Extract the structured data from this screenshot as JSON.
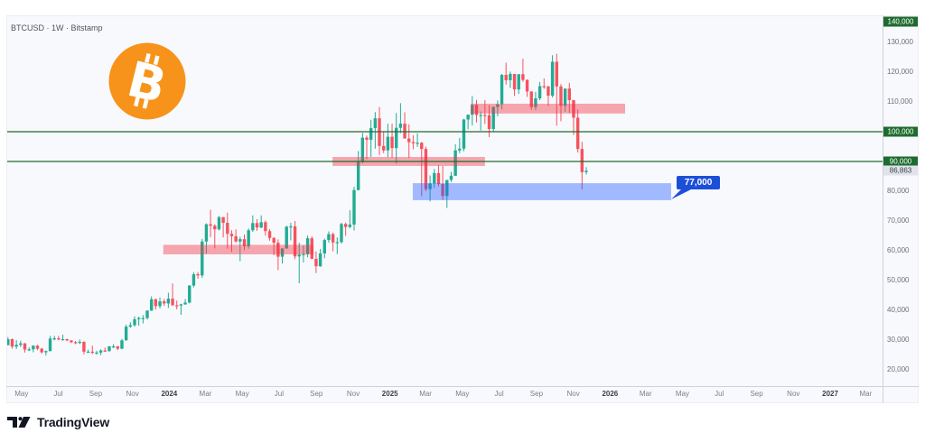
{
  "header": {
    "title": "BTCUSD · 1W · Bitstamp"
  },
  "logo": {
    "glyph": "B"
  },
  "brand": {
    "name": "TradingView"
  },
  "annotation": {
    "text": "77,000",
    "anchor_index": 157.1,
    "anchor_price": 77000
  },
  "colors": {
    "up": "#22ab94",
    "down": "#f7525f",
    "level_line": "#1e6b2e",
    "supply_zone": "rgba(242,54,69,0.43)",
    "demand_zone": "rgba(41,98,255,0.42)",
    "callout": "#1c4fd8",
    "bitcoin_orange": "#f7931a"
  },
  "price_axis": {
    "labels": [
      {
        "text": "130,000",
        "price": 130000
      },
      {
        "text": "120,000",
        "price": 120000
      },
      {
        "text": "110,000",
        "price": 110000
      },
      {
        "text": "80,000",
        "price": 80000
      },
      {
        "text": "70,000",
        "price": 70000
      },
      {
        "text": "60,000",
        "price": 60000
      },
      {
        "text": "50,000",
        "price": 50000
      },
      {
        "text": "40,000",
        "price": 40000
      },
      {
        "text": "30,000",
        "price": 30000
      },
      {
        "text": "20,000",
        "price": 20000
      }
    ],
    "highlight_labels": [
      {
        "text": "140,000",
        "price": 140000,
        "kind": "line"
      },
      {
        "text": "100,000",
        "price": 100000,
        "kind": "line"
      },
      {
        "text": "90,000",
        "price": 90000,
        "kind": "line"
      },
      {
        "text": "86,863",
        "price": 86863,
        "kind": "last"
      }
    ]
  },
  "time_axis": {
    "labels": [
      {
        "text": "May",
        "date": "2023-05-01",
        "year": false
      },
      {
        "text": "Jul",
        "date": "2023-07-01",
        "year": false
      },
      {
        "text": "Sep",
        "date": "2023-09-01",
        "year": false
      },
      {
        "text": "Nov",
        "date": "2023-11-01",
        "year": false
      },
      {
        "text": "2024",
        "date": "2024-01-01",
        "year": true
      },
      {
        "text": "Mar",
        "date": "2024-03-01",
        "year": false
      },
      {
        "text": "May",
        "date": "2024-05-01",
        "year": false
      },
      {
        "text": "Jul",
        "date": "2024-07-01",
        "year": false
      },
      {
        "text": "Sep",
        "date": "2024-09-01",
        "year": false
      },
      {
        "text": "Nov",
        "date": "2024-11-01",
        "year": false
      },
      {
        "text": "2025",
        "date": "2025-01-01",
        "year": true
      },
      {
        "text": "Mar",
        "date": "2025-03-01",
        "year": false
      },
      {
        "text": "May",
        "date": "2025-05-01",
        "year": false
      },
      {
        "text": "Jul",
        "date": "2025-07-01",
        "year": false
      },
      {
        "text": "Sep",
        "date": "2025-09-01",
        "year": false
      },
      {
        "text": "Nov",
        "date": "2025-11-01",
        "year": false
      },
      {
        "text": "2026",
        "date": "2026-01-01",
        "year": true
      },
      {
        "text": "Mar",
        "date": "2026-03-01",
        "year": false
      },
      {
        "text": "May",
        "date": "2026-05-01",
        "year": false
      },
      {
        "text": "Jul",
        "date": "2026-07-01",
        "year": false
      },
      {
        "text": "Sep",
        "date": "2026-09-01",
        "year": false
      },
      {
        "text": "Nov",
        "date": "2026-11-01",
        "year": false
      },
      {
        "text": "2027",
        "date": "2027-01-01",
        "year": true
      },
      {
        "text": "Mar",
        "date": "2027-03-01",
        "year": false
      }
    ]
  },
  "chart_data": {
    "type": "candlestick",
    "title": "BTCUSD · 1W · Bitstamp",
    "symbol": "BTCUSD",
    "interval": "1W",
    "exchange": "Bitstamp",
    "xlabel": "",
    "ylabel": "",
    "ylim": [
      15000,
      143000
    ],
    "grid": false,
    "legend": "none",
    "y_ticks": [
      20000,
      30000,
      40000,
      50000,
      60000,
      70000,
      80000,
      90000,
      100000,
      110000,
      120000,
      130000,
      140000
    ],
    "x_ticks": [
      "May",
      "Jul",
      "Sep",
      "Nov",
      "2024",
      "Mar",
      "May",
      "Jul",
      "Sep",
      "Nov",
      "2025",
      "Mar",
      "May",
      "Jul",
      "Sep",
      "Nov",
      "2026",
      "Mar",
      "May",
      "Jul",
      "Sep",
      "Nov",
      "2027",
      "Mar"
    ],
    "last_price": 86863,
    "start_week": "2023-04-10",
    "ohlc_unit": "thousands USD, [open, high, low, close], one candle per week",
    "candles": [
      [
        28.3,
        31.0,
        28.2,
        30.3
      ],
      [
        30.3,
        30.5,
        27.1,
        27.8
      ],
      [
        27.8,
        30.0,
        27.0,
        28.4
      ],
      [
        28.4,
        29.8,
        27.7,
        28.9
      ],
      [
        28.9,
        29.0,
        25.8,
        26.8
      ],
      [
        26.8,
        27.6,
        26.3,
        26.9
      ],
      [
        26.9,
        28.3,
        25.9,
        28.1
      ],
      [
        28.1,
        28.4,
        26.6,
        27.1
      ],
      [
        27.1,
        27.4,
        25.4,
        25.9
      ],
      [
        25.9,
        26.5,
        24.8,
        26.3
      ],
      [
        26.3,
        31.4,
        26.2,
        30.5
      ],
      [
        30.5,
        31.4,
        29.9,
        30.6
      ],
      [
        30.6,
        31.4,
        29.9,
        30.2
      ],
      [
        30.2,
        31.8,
        29.9,
        30.3
      ],
      [
        30.3,
        30.4,
        29.6,
        29.9
      ],
      [
        29.9,
        29.9,
        29.0,
        29.3
      ],
      [
        29.3,
        29.7,
        28.6,
        29.0
      ],
      [
        29.0,
        30.2,
        28.7,
        29.4
      ],
      [
        29.4,
        29.6,
        25.2,
        26.1
      ],
      [
        26.1,
        26.8,
        25.8,
        26.1
      ],
      [
        26.1,
        28.1,
        25.3,
        25.8
      ],
      [
        25.8,
        26.4,
        25.1,
        25.8
      ],
      [
        25.8,
        26.9,
        24.9,
        26.5
      ],
      [
        26.5,
        27.5,
        26.0,
        26.3
      ],
      [
        26.3,
        28.0,
        26.1,
        27.9
      ],
      [
        27.9,
        28.6,
        27.3,
        27.9
      ],
      [
        27.9,
        28.0,
        26.6,
        27.1
      ],
      [
        27.1,
        30.4,
        26.9,
        29.9
      ],
      [
        29.9,
        35.2,
        29.8,
        34.5
      ],
      [
        34.5,
        36.0,
        34.1,
        35.0
      ],
      [
        35.0,
        38.0,
        34.5,
        37.0
      ],
      [
        37.0,
        37.9,
        34.8,
        37.4
      ],
      [
        37.4,
        38.4,
        35.6,
        37.4
      ],
      [
        37.4,
        40.0,
        36.9,
        39.9
      ],
      [
        39.9,
        44.7,
        39.8,
        43.7
      ],
      [
        43.7,
        43.9,
        40.2,
        41.4
      ],
      [
        41.4,
        44.3,
        40.6,
        43.0
      ],
      [
        43.0,
        43.8,
        41.5,
        42.3
      ],
      [
        42.3,
        45.9,
        40.8,
        43.9
      ],
      [
        43.9,
        49.0,
        41.5,
        41.7
      ],
      [
        41.7,
        43.3,
        40.3,
        41.6
      ],
      [
        41.6,
        42.2,
        38.5,
        42.0
      ],
      [
        42.0,
        43.8,
        41.8,
        42.6
      ],
      [
        42.6,
        48.5,
        42.3,
        48.3
      ],
      [
        48.3,
        52.8,
        47.7,
        52.1
      ],
      [
        52.1,
        52.9,
        50.6,
        51.7
      ],
      [
        51.7,
        64.0,
        50.9,
        63.1
      ],
      [
        63.1,
        69.2,
        59.0,
        68.9
      ],
      [
        68.9,
        73.8,
        64.6,
        68.4
      ],
      [
        68.4,
        68.9,
        60.8,
        67.2
      ],
      [
        67.2,
        71.7,
        66.8,
        71.3
      ],
      [
        71.3,
        71.3,
        64.5,
        69.4
      ],
      [
        69.4,
        72.8,
        60.7,
        65.7
      ],
      [
        65.7,
        66.9,
        59.6,
        64.9
      ],
      [
        64.9,
        67.2,
        62.8,
        63.1
      ],
      [
        63.1,
        64.7,
        56.5,
        63.9
      ],
      [
        63.9,
        65.5,
        60.2,
        61.5
      ],
      [
        61.5,
        67.5,
        60.7,
        66.9
      ],
      [
        66.9,
        71.9,
        66.3,
        69.3
      ],
      [
        69.3,
        70.6,
        66.7,
        67.8
      ],
      [
        67.8,
        71.9,
        67.6,
        69.6
      ],
      [
        69.6,
        70.2,
        65.1,
        66.6
      ],
      [
        66.6,
        67.3,
        63.4,
        64.3
      ],
      [
        64.3,
        64.6,
        58.5,
        62.7
      ],
      [
        62.7,
        63.8,
        53.5,
        58.0
      ],
      [
        58.0,
        60.8,
        55.7,
        60.8
      ],
      [
        60.8,
        68.4,
        60.6,
        68.1
      ],
      [
        68.1,
        69.4,
        63.5,
        68.2
      ],
      [
        68.2,
        70.0,
        57.2,
        58.1
      ],
      [
        58.1,
        62.7,
        49.1,
        58.7
      ],
      [
        58.7,
        61.8,
        56.1,
        58.9
      ],
      [
        58.9,
        65.1,
        57.8,
        64.2
      ],
      [
        64.2,
        64.9,
        57.2,
        57.3
      ],
      [
        57.3,
        59.8,
        52.5,
        54.8
      ],
      [
        54.8,
        60.6,
        54.6,
        59.1
      ],
      [
        59.1,
        64.1,
        57.5,
        63.6
      ],
      [
        63.6,
        66.5,
        62.7,
        65.6
      ],
      [
        65.6,
        66.1,
        59.8,
        62.8
      ],
      [
        62.8,
        64.5,
        58.9,
        62.9
      ],
      [
        62.9,
        69.4,
        62.4,
        69.0
      ],
      [
        69.0,
        69.5,
        65.0,
        68.0
      ],
      [
        68.0,
        73.6,
        67.5,
        68.8
      ],
      [
        68.8,
        81.5,
        66.8,
        80.4
      ],
      [
        80.4,
        93.5,
        80.3,
        89.8
      ],
      [
        89.8,
        99.6,
        89.4,
        98.0
      ],
      [
        98.0,
        98.7,
        90.8,
        97.3
      ],
      [
        97.3,
        104.0,
        91.5,
        101.2
      ],
      [
        101.2,
        106.6,
        94.3,
        104.5
      ],
      [
        104.5,
        108.3,
        92.2,
        95.2
      ],
      [
        95.2,
        99.9,
        92.8,
        93.7
      ],
      [
        93.7,
        102.7,
        91.4,
        98.3
      ],
      [
        98.3,
        102.7,
        91.2,
        94.5
      ],
      [
        94.5,
        106.3,
        89.3,
        101.3
      ],
      [
        101.3,
        109.6,
        99.5,
        102.7
      ],
      [
        102.7,
        106.5,
        97.7,
        97.7
      ],
      [
        97.7,
        102.5,
        91.2,
        96.5
      ],
      [
        96.5,
        98.8,
        94.1,
        96.1
      ],
      [
        96.1,
        99.5,
        94.9,
        96.3
      ],
      [
        96.3,
        96.5,
        78.3,
        94.2
      ],
      [
        94.2,
        95.0,
        80.0,
        80.7
      ],
      [
        80.7,
        85.3,
        76.6,
        82.6
      ],
      [
        82.6,
        87.5,
        81.1,
        86.1
      ],
      [
        86.1,
        88.8,
        81.6,
        82.4
      ],
      [
        82.4,
        88.5,
        77.1,
        78.4
      ],
      [
        78.4,
        83.5,
        74.4,
        83.8
      ],
      [
        83.8,
        86.5,
        83.1,
        85.2
      ],
      [
        85.2,
        95.8,
        85.1,
        93.7
      ],
      [
        93.7,
        97.9,
        92.8,
        94.3
      ],
      [
        94.3,
        104.3,
        93.4,
        104.1
      ],
      [
        104.1,
        105.8,
        100.8,
        105.7
      ],
      [
        105.7,
        112.0,
        102.1,
        109.0
      ],
      [
        109.0,
        110.7,
        103.1,
        105.6
      ],
      [
        105.6,
        106.8,
        100.4,
        105.6
      ],
      [
        105.6,
        110.6,
        102.6,
        105.5
      ],
      [
        105.5,
        108.9,
        98.2,
        100.9
      ],
      [
        100.9,
        108.5,
        100.0,
        108.3
      ],
      [
        108.3,
        110.5,
        105.2,
        109.2
      ],
      [
        109.2,
        119.4,
        107.5,
        119.1
      ],
      [
        119.1,
        123.2,
        115.8,
        117.3
      ],
      [
        117.3,
        120.2,
        114.7,
        119.4
      ],
      [
        119.4,
        119.4,
        112.0,
        114.2
      ],
      [
        114.2,
        119.3,
        112.7,
        119.3
      ],
      [
        119.3,
        124.5,
        116.8,
        117.4
      ],
      [
        117.4,
        117.6,
        111.7,
        113.5
      ],
      [
        113.5,
        113.6,
        107.3,
        108.3
      ],
      [
        108.3,
        113.4,
        107.3,
        111.2
      ],
      [
        111.2,
        116.7,
        110.6,
        115.3
      ],
      [
        115.3,
        117.9,
        114.4,
        115.2
      ],
      [
        115.2,
        115.4,
        108.6,
        112.1
      ],
      [
        112.1,
        125.7,
        111.5,
        123.5
      ],
      [
        123.5,
        126.2,
        102.0,
        115.2
      ],
      [
        115.2,
        116.0,
        103.5,
        108.7
      ],
      [
        108.7,
        114.0,
        106.7,
        114.5
      ],
      [
        114.5,
        116.4,
        106.3,
        110.6
      ],
      [
        110.6,
        110.7,
        98.9,
        104.7
      ],
      [
        104.7,
        107.5,
        93.0,
        94.2
      ],
      [
        94.2,
        96.6,
        80.6,
        86.4
      ],
      [
        86.4,
        88.1,
        85.6,
        86.863
      ]
    ],
    "horizontal_lines": [
      {
        "name": "level-100000",
        "price": 100000,
        "color": "#1e6b2e"
      },
      {
        "name": "level-90000",
        "price": 90000,
        "color": "#1e6b2e"
      }
    ],
    "zones": [
      {
        "name": "resistance-zone-60k",
        "from_index": 36.8,
        "to_index": 72.4,
        "top": 62000,
        "bottom": 58800,
        "color": "rgba(242,54,69,0.43)"
      },
      {
        "name": "resistance-zone-90k",
        "from_index": 76.9,
        "to_index": 113.0,
        "top": 91500,
        "bottom": 88500,
        "color": "rgba(242,54,69,0.43)"
      },
      {
        "name": "resistance-zone-108k",
        "from_index": 109.6,
        "to_index": 146.2,
        "top": 109400,
        "bottom": 106100,
        "color": "rgba(242,54,69,0.43)"
      },
      {
        "name": "support-zone-77k",
        "from_index": 95.9,
        "to_index": 157.1,
        "top": 82700,
        "bottom": 77000,
        "color": "rgba(41,98,255,0.42)"
      }
    ],
    "annotations": [
      {
        "text": "77,000",
        "price": 77000,
        "type": "callout"
      }
    ]
  }
}
